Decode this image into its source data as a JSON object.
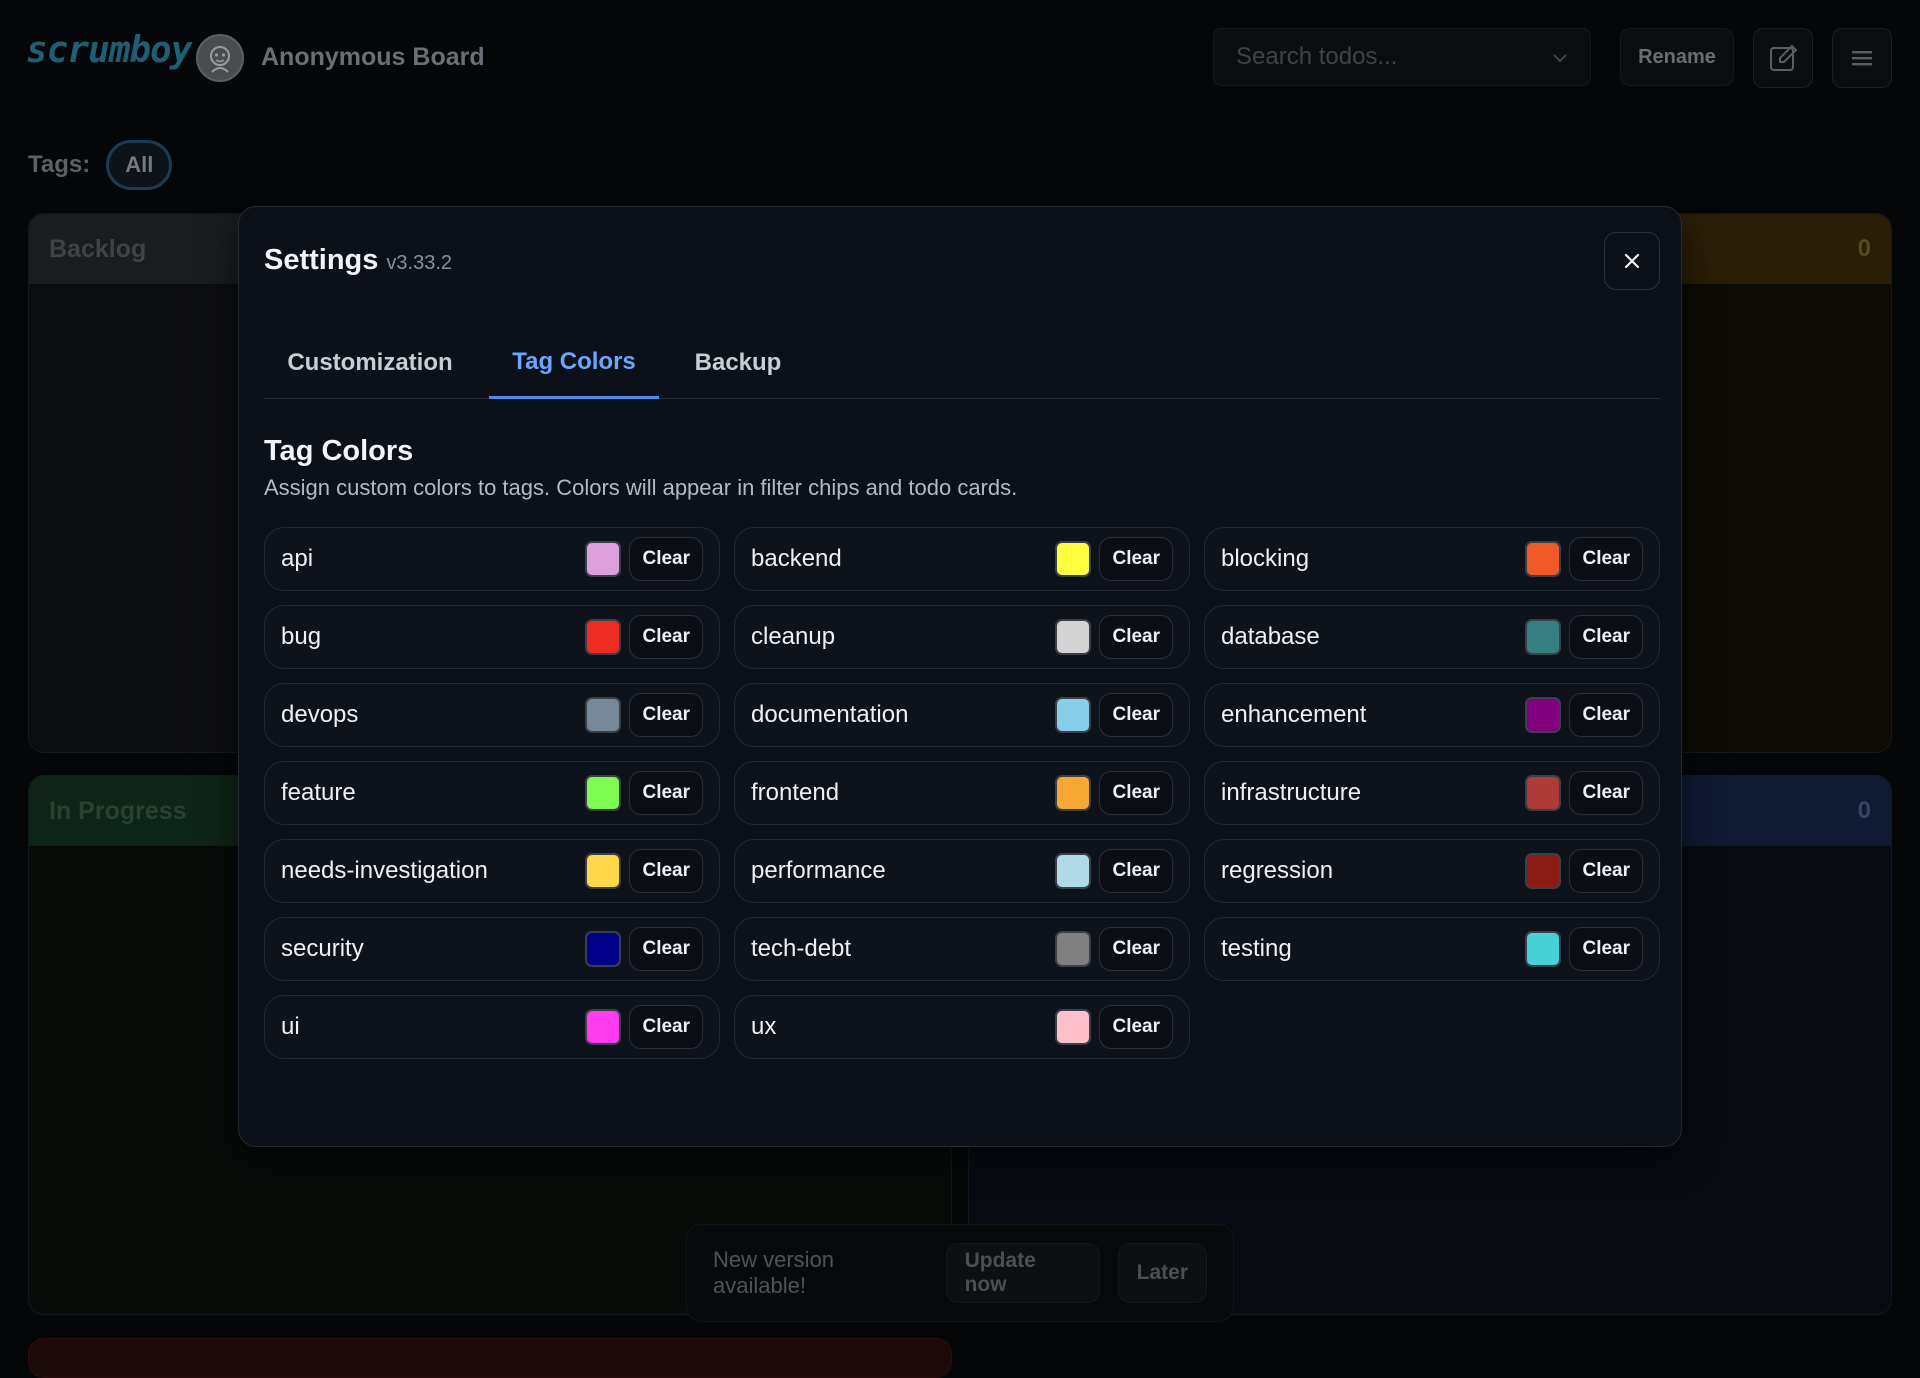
{
  "header": {
    "logo": "scrumboy",
    "board_title": "Anonymous Board",
    "search_placeholder": "Search todos...",
    "rename_label": "Rename",
    "edit_icon": "edit-icon",
    "menu_icon": "menu-icon"
  },
  "tags_filter": {
    "label": "Tags:",
    "all_label": "All"
  },
  "columns": [
    {
      "title": "Backlog",
      "count": "",
      "color": "#1a1c20"
    },
    {
      "title": "",
      "count": "0",
      "color": "#3a2a08"
    },
    {
      "title": "In Progress",
      "count": "",
      "color": "#12301e"
    },
    {
      "title": "",
      "count": "0",
      "color": "#142040"
    }
  ],
  "settings": {
    "title": "Settings",
    "version": "v3.33.2",
    "tabs": [
      {
        "label": "Customization",
        "active": false
      },
      {
        "label": "Tag Colors",
        "active": true
      },
      {
        "label": "Backup",
        "active": false
      }
    ],
    "section_title": "Tag Colors",
    "section_desc": "Assign custom colors to tags. Colors will appear in filter chips and todo cards.",
    "clear_label": "Clear",
    "tags": [
      {
        "name": "api",
        "color": "#dda0dd"
      },
      {
        "name": "backend",
        "color": "#ffff40"
      },
      {
        "name": "blocking",
        "color": "#f05a28"
      },
      {
        "name": "bug",
        "color": "#ee2c22"
      },
      {
        "name": "cleanup",
        "color": "#d3d3d3"
      },
      {
        "name": "database",
        "color": "#348080"
      },
      {
        "name": "devops",
        "color": "#778899"
      },
      {
        "name": "documentation",
        "color": "#87ceeb"
      },
      {
        "name": "enhancement",
        "color": "#800080"
      },
      {
        "name": "feature",
        "color": "#7cfc50"
      },
      {
        "name": "frontend",
        "color": "#f7a834"
      },
      {
        "name": "infrastructure",
        "color": "#b03a38"
      },
      {
        "name": "needs-investigation",
        "color": "#ffd84a"
      },
      {
        "name": "performance",
        "color": "#b0dae6"
      },
      {
        "name": "regression",
        "color": "#8b1a12"
      },
      {
        "name": "security",
        "color": "#00008b"
      },
      {
        "name": "tech-debt",
        "color": "#808080"
      },
      {
        "name": "testing",
        "color": "#48d1d8"
      },
      {
        "name": "ui",
        "color": "#ff3cf0"
      },
      {
        "name": "ux",
        "color": "#ffc0cb"
      }
    ]
  },
  "toast": {
    "message": "New version available!",
    "update_label": "Update now",
    "later_label": "Later"
  }
}
